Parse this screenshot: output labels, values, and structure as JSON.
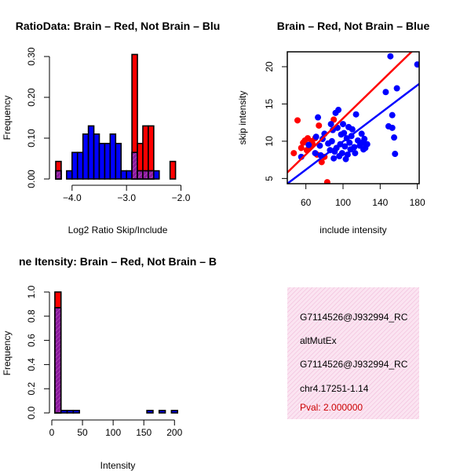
{
  "colors": {
    "red": "#ff0000",
    "blue": "#0000ff",
    "purple": "#8b1a9e",
    "hatch": "#b03aa8",
    "pink": "#f3c8e2"
  },
  "chart_data": [
    {
      "type": "bar",
      "title": "RatioData: Brain – Red, Not Brain – Blu",
      "xlabel": "Log2 Ratio Skip/Include",
      "ylabel": "Frequency",
      "xlim": [
        -4.3,
        -1.95
      ],
      "ylim": [
        0,
        0.3
      ],
      "xticks": [
        "−4.0",
        "−3.0",
        "−2.0"
      ],
      "xtick_values": [
        -4.0,
        -3.0,
        -2.0
      ],
      "yticks": [
        "0.00",
        "0.10",
        "0.20",
        "0.30"
      ],
      "ytick_values": [
        0,
        0.1,
        0.2,
        0.3
      ],
      "bin_edges": [
        -4.3,
        -4.2,
        -4.1,
        -4.0,
        -3.9,
        -3.8,
        -3.7,
        -3.6,
        -3.5,
        -3.4,
        -3.3,
        -3.2,
        -3.1,
        -3.0,
        -2.9,
        -2.8,
        -2.7,
        -2.6,
        -2.5,
        -2.4,
        -2.3,
        -2.2,
        -2.1
      ],
      "series": [
        {
          "name": "Brain",
          "color": "red",
          "values": [
            0.043,
            0,
            0,
            0,
            0,
            0,
            0,
            0,
            0,
            0,
            0,
            0,
            0,
            0,
            0.305,
            0.087,
            0.13,
            0.13,
            0,
            0,
            0,
            0.043
          ]
        },
        {
          "name": "Not Brain",
          "color": "blue",
          "values": [
            0.02,
            0,
            0.02,
            0.065,
            0.065,
            0.11,
            0.13,
            0.11,
            0.087,
            0.087,
            0.11,
            0.087,
            0.02,
            0.02,
            0.065,
            0.02,
            0.02,
            0.02,
            0.02,
            0,
            0,
            0
          ]
        }
      ]
    },
    {
      "type": "scatter",
      "title": "Brain – Red, Not Brain – Blue",
      "xlabel": "include intensity",
      "ylabel": "skip intensity",
      "xlim": [
        40,
        182
      ],
      "ylim": [
        4.3,
        22
      ],
      "xticks": [
        "60",
        "100",
        "140",
        "180"
      ],
      "xtick_values": [
        60,
        100,
        140,
        180
      ],
      "yticks": [
        "5",
        "10",
        "15",
        "20"
      ],
      "ytick_values": [
        5,
        10,
        15,
        20
      ],
      "series": [
        {
          "name": "Brain",
          "color": "red",
          "points": [
            [
              47,
              8.4
            ],
            [
              51,
              12.8
            ],
            [
              55,
              9.1
            ],
            [
              57,
              9.8
            ],
            [
              59,
              10.1
            ],
            [
              61,
              8.8
            ],
            [
              62,
              10.4
            ],
            [
              64,
              9.2
            ],
            [
              66,
              10.0
            ],
            [
              67,
              9.7
            ],
            [
              70,
              10.4
            ],
            [
              72,
              8.2
            ],
            [
              74,
              12.1
            ],
            [
              77,
              7.2
            ],
            [
              80,
              7.9
            ],
            [
              83,
              4.5
            ],
            [
              90,
              12.9
            ]
          ],
          "fit": [
            [
              40,
              5.8
            ],
            [
              182,
              23.0
            ]
          ]
        },
        {
          "name": "Not Brain",
          "color": "blue",
          "points": [
            [
              55,
              7.9
            ],
            [
              63,
              9.5
            ],
            [
              70,
              8.4
            ],
            [
              71,
              10.6
            ],
            [
              73,
              13.2
            ],
            [
              75,
              9.4
            ],
            [
              76,
              8.1
            ],
            [
              78,
              10.3
            ],
            [
              80,
              11.0
            ],
            [
              84,
              9.7
            ],
            [
              86,
              8.8
            ],
            [
              87,
              12.3
            ],
            [
              88,
              10.0
            ],
            [
              89,
              11.5
            ],
            [
              90,
              7.7
            ],
            [
              91,
              8.6
            ],
            [
              92,
              13.8
            ],
            [
              93,
              9.1
            ],
            [
              94,
              11.8
            ],
            [
              95,
              14.2
            ],
            [
              96,
              8.0
            ],
            [
              97,
              9.6
            ],
            [
              98,
              10.9
            ],
            [
              99,
              8.4
            ],
            [
              100,
              12.3
            ],
            [
              101,
              11.1
            ],
            [
              102,
              9.3
            ],
            [
              103,
              7.6
            ],
            [
              104,
              10.4
            ],
            [
              105,
              8.2
            ],
            [
              106,
              11.9
            ],
            [
              107,
              9.8
            ],
            [
              108,
              8.9
            ],
            [
              109,
              10.7
            ],
            [
              110,
              11.6
            ],
            [
              112,
              9.2
            ],
            [
              113,
              8.4
            ],
            [
              114,
              13.6
            ],
            [
              116,
              10.1
            ],
            [
              118,
              9.4
            ],
            [
              120,
              11.0
            ],
            [
              121,
              9.8
            ],
            [
              122,
              8.9
            ],
            [
              123,
              10.3
            ],
            [
              124,
              9.1
            ],
            [
              126,
              9.6
            ],
            [
              146,
              16.6
            ],
            [
              149,
              12.0
            ],
            [
              151,
              21.4
            ],
            [
              153,
              13.5
            ],
            [
              153,
              11.8
            ],
            [
              155,
              10.5
            ],
            [
              156,
              8.3
            ],
            [
              158,
              17.1
            ],
            [
              180,
              20.3
            ]
          ],
          "fit": [
            [
              40,
              4.3
            ],
            [
              182,
              17.7
            ]
          ]
        }
      ]
    },
    {
      "type": "bar",
      "title": "ne Itensity: Brain – Red, Not Brain – B",
      "xlabel": "Intensity",
      "ylabel": "Frequency",
      "xlim": [
        0,
        215
      ],
      "ylim": [
        0,
        1.0
      ],
      "xticks": [
        "0",
        "50",
        "100",
        "150",
        "200"
      ],
      "xtick_values": [
        0,
        50,
        100,
        150,
        200
      ],
      "yticks": [
        "0.0",
        "0.2",
        "0.4",
        "0.6",
        "0.8",
        "1.0"
      ],
      "ytick_values": [
        0,
        0.2,
        0.4,
        0.6,
        0.8,
        1.0
      ],
      "bin_edges": [
        5,
        15,
        25,
        35,
        45,
        55,
        65,
        75,
        85,
        95,
        105,
        115,
        125,
        135,
        145,
        155,
        165,
        175,
        185,
        195,
        205,
        215
      ],
      "series": [
        {
          "name": "Brain",
          "color": "red",
          "values": [
            1.0,
            0,
            0,
            0,
            0,
            0,
            0,
            0,
            0,
            0,
            0,
            0,
            0,
            0,
            0,
            0,
            0,
            0,
            0,
            0,
            0
          ]
        },
        {
          "name": "Not Brain",
          "color": "blue",
          "values": [
            0.87,
            0.02,
            0.02,
            0.02,
            0,
            0,
            0,
            0,
            0,
            0,
            0,
            0,
            0,
            0,
            0,
            0.02,
            0,
            0.02,
            0,
            0.02,
            0
          ]
        }
      ]
    }
  ],
  "info_box": {
    "line1": "G7114526@J932994_RC",
    "line2": "altMutEx",
    "line3": "G7114526@J932994_RC",
    "line4": "chr4.17251-1.14",
    "pval": "Pval: 2.000000"
  }
}
